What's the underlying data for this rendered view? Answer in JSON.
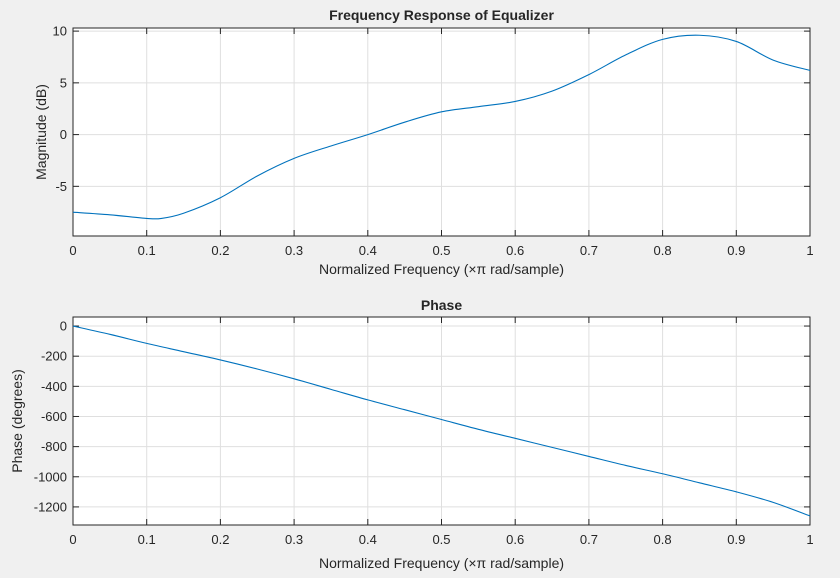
{
  "chart_data": [
    {
      "type": "line",
      "title": "Frequency Response of Equalizer",
      "xlabel": "Normalized Frequency  (×π rad/sample)",
      "ylabel": "Magnitude (dB)",
      "xlim": [
        0,
        1
      ],
      "ylim": [
        -9.8,
        10.3
      ],
      "xticks": [
        0,
        0.1,
        0.2,
        0.3,
        0.4,
        0.5,
        0.6,
        0.7,
        0.8,
        0.9,
        1
      ],
      "xtick_labels": [
        "0",
        "0.1",
        "0.2",
        "0.3",
        "0.4",
        "0.5",
        "0.6",
        "0.7",
        "0.8",
        "0.9",
        "1"
      ],
      "yticks": [
        -5,
        0,
        5,
        10
      ],
      "ytick_labels": [
        "-5",
        "0",
        "5",
        "10"
      ],
      "grid": true,
      "line_color": "#0072bd",
      "series": [
        {
          "x": [
            0,
            0.05,
            0.1,
            0.12,
            0.15,
            0.2,
            0.25,
            0.3,
            0.35,
            0.4,
            0.45,
            0.5,
            0.55,
            0.6,
            0.65,
            0.7,
            0.75,
            0.8,
            0.85,
            0.9,
            0.95,
            1.0
          ],
          "y": [
            -7.5,
            -7.75,
            -8.1,
            -8.1,
            -7.6,
            -6.1,
            -4.0,
            -2.3,
            -1.1,
            0.0,
            1.2,
            2.2,
            2.7,
            3.2,
            4.2,
            5.8,
            7.7,
            9.2,
            9.6,
            9.0,
            7.2,
            6.2
          ]
        }
      ]
    },
    {
      "type": "line",
      "title": "Phase",
      "xlabel": "Normalized Frequency  (×π rad/sample)",
      "ylabel": "Phase (degrees)",
      "xlim": [
        0,
        1
      ],
      "ylim": [
        -1320,
        60
      ],
      "xticks": [
        0,
        0.1,
        0.2,
        0.3,
        0.4,
        0.5,
        0.6,
        0.7,
        0.8,
        0.9,
        1
      ],
      "xtick_labels": [
        "0",
        "0.1",
        "0.2",
        "0.3",
        "0.4",
        "0.5",
        "0.6",
        "0.7",
        "0.8",
        "0.9",
        "1"
      ],
      "yticks": [
        -1200,
        -1000,
        -800,
        -600,
        -400,
        -200,
        0
      ],
      "ytick_labels": [
        "-1200",
        "-1000",
        "-800",
        "-600",
        "-400",
        "-200",
        "0"
      ],
      "grid": true,
      "line_color": "#0072bd",
      "series": [
        {
          "x": [
            0,
            0.05,
            0.1,
            0.15,
            0.2,
            0.25,
            0.3,
            0.35,
            0.4,
            0.45,
            0.5,
            0.55,
            0.6,
            0.65,
            0.7,
            0.75,
            0.8,
            0.85,
            0.9,
            0.95,
            1.0
          ],
          "y": [
            0,
            -55,
            -115,
            -170,
            -225,
            -285,
            -350,
            -420,
            -490,
            -555,
            -620,
            -685,
            -745,
            -805,
            -865,
            -925,
            -980,
            -1040,
            -1100,
            -1170,
            -1260
          ]
        }
      ]
    }
  ]
}
